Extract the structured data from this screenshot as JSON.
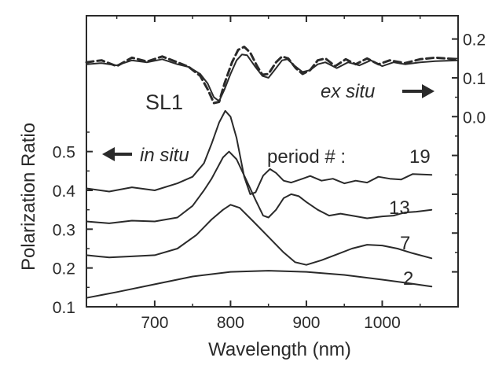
{
  "chart_data": {
    "type": "line",
    "xlabel": "Wavelength  (nm)",
    "ylabel": "Polarization Ratio",
    "xlim": [
      610,
      1100
    ],
    "x_ticks": [
      "700",
      "800",
      "900",
      "1000"
    ],
    "x_tick_values": [
      700,
      800,
      900,
      1000
    ],
    "ylim_left": [
      0.1,
      0.85
    ],
    "y_left_ticks": [
      "0.1",
      "0.2",
      "0.3",
      "0.4",
      "0.5"
    ],
    "y_left_tick_values": [
      0.1,
      0.2,
      0.3,
      0.4,
      0.5
    ],
    "y_right_ticks": [
      "0.0",
      "0.1",
      "0.2"
    ],
    "y_right_tick_values": [
      0.0,
      0.1,
      0.2
    ],
    "y_right_offset": 0.59,
    "grid": false,
    "color": "#2a2a2a",
    "annotations": {
      "sample": "SL1",
      "in_situ": "in situ",
      "ex_situ": "ex situ",
      "period_prefix": "period # :"
    },
    "series": [
      {
        "name": "19",
        "axis": "left",
        "style": "solid",
        "points": [
          [
            610,
            0.405
          ],
          [
            640,
            0.397
          ],
          [
            670,
            0.408
          ],
          [
            700,
            0.4
          ],
          [
            730,
            0.418
          ],
          [
            750,
            0.435
          ],
          [
            765,
            0.47
          ],
          [
            775,
            0.52
          ],
          [
            785,
            0.575
          ],
          [
            793,
            0.605
          ],
          [
            800,
            0.59
          ],
          [
            808,
            0.535
          ],
          [
            818,
            0.435
          ],
          [
            826,
            0.39
          ],
          [
            833,
            0.395
          ],
          [
            843,
            0.438
          ],
          [
            852,
            0.455
          ],
          [
            860,
            0.445
          ],
          [
            870,
            0.425
          ],
          [
            880,
            0.42
          ],
          [
            895,
            0.43
          ],
          [
            905,
            0.437
          ],
          [
            920,
            0.425
          ],
          [
            935,
            0.43
          ],
          [
            950,
            0.418
          ],
          [
            965,
            0.425
          ],
          [
            980,
            0.42
          ],
          [
            995,
            0.435
          ],
          [
            1010,
            0.43
          ],
          [
            1025,
            0.428
          ],
          [
            1040,
            0.442
          ],
          [
            1065,
            0.44
          ]
        ]
      },
      {
        "name": "13",
        "axis": "left",
        "style": "solid",
        "points": [
          [
            610,
            0.32
          ],
          [
            640,
            0.315
          ],
          [
            670,
            0.322
          ],
          [
            700,
            0.32
          ],
          [
            730,
            0.33
          ],
          [
            750,
            0.36
          ],
          [
            765,
            0.4
          ],
          [
            775,
            0.43
          ],
          [
            790,
            0.485
          ],
          [
            798,
            0.5
          ],
          [
            808,
            0.48
          ],
          [
            820,
            0.43
          ],
          [
            833,
            0.375
          ],
          [
            843,
            0.335
          ],
          [
            850,
            0.33
          ],
          [
            860,
            0.35
          ],
          [
            870,
            0.38
          ],
          [
            880,
            0.39
          ],
          [
            890,
            0.385
          ],
          [
            900,
            0.37
          ],
          [
            915,
            0.35
          ],
          [
            930,
            0.335
          ],
          [
            945,
            0.34
          ],
          [
            960,
            0.335
          ],
          [
            980,
            0.328
          ],
          [
            1000,
            0.333
          ],
          [
            1015,
            0.335
          ],
          [
            1030,
            0.343
          ],
          [
            1045,
            0.345
          ],
          [
            1065,
            0.35
          ]
        ]
      },
      {
        "name": "7",
        "axis": "left",
        "style": "solid",
        "points": [
          [
            610,
            0.233
          ],
          [
            640,
            0.227
          ],
          [
            670,
            0.23
          ],
          [
            700,
            0.233
          ],
          [
            730,
            0.25
          ],
          [
            755,
            0.285
          ],
          [
            775,
            0.325
          ],
          [
            790,
            0.35
          ],
          [
            800,
            0.363
          ],
          [
            812,
            0.355
          ],
          [
            830,
            0.32
          ],
          [
            850,
            0.28
          ],
          [
            870,
            0.24
          ],
          [
            885,
            0.215
          ],
          [
            900,
            0.208
          ],
          [
            920,
            0.22
          ],
          [
            940,
            0.235
          ],
          [
            960,
            0.25
          ],
          [
            980,
            0.26
          ],
          [
            1000,
            0.258
          ],
          [
            1020,
            0.25
          ],
          [
            1040,
            0.238
          ],
          [
            1065,
            0.225
          ]
        ]
      },
      {
        "name": "2",
        "axis": "left",
        "style": "solid",
        "points": [
          [
            610,
            0.123
          ],
          [
            650,
            0.138
          ],
          [
            700,
            0.158
          ],
          [
            750,
            0.178
          ],
          [
            800,
            0.19
          ],
          [
            850,
            0.193
          ],
          [
            900,
            0.19
          ],
          [
            950,
            0.182
          ],
          [
            1000,
            0.17
          ],
          [
            1030,
            0.162
          ],
          [
            1065,
            0.152
          ]
        ]
      },
      {
        "name": "ex situ (solid)",
        "axis": "right",
        "style": "solid",
        "points": [
          [
            610,
            0.135
          ],
          [
            630,
            0.138
          ],
          [
            650,
            0.132
          ],
          [
            670,
            0.145
          ],
          [
            690,
            0.14
          ],
          [
            710,
            0.148
          ],
          [
            730,
            0.135
          ],
          [
            745,
            0.128
          ],
          [
            760,
            0.11
          ],
          [
            770,
            0.085
          ],
          [
            778,
            0.05
          ],
          [
            785,
            0.04
          ],
          [
            792,
            0.07
          ],
          [
            800,
            0.11
          ],
          [
            808,
            0.145
          ],
          [
            815,
            0.16
          ],
          [
            822,
            0.158
          ],
          [
            832,
            0.13
          ],
          [
            842,
            0.105
          ],
          [
            850,
            0.1
          ],
          [
            858,
            0.12
          ],
          [
            868,
            0.145
          ],
          [
            875,
            0.148
          ],
          [
            885,
            0.13
          ],
          [
            895,
            0.115
          ],
          [
            905,
            0.12
          ],
          [
            915,
            0.135
          ],
          [
            925,
            0.14
          ],
          [
            940,
            0.125
          ],
          [
            955,
            0.14
          ],
          [
            970,
            0.132
          ],
          [
            985,
            0.145
          ],
          [
            1000,
            0.13
          ],
          [
            1015,
            0.14
          ],
          [
            1030,
            0.135
          ],
          [
            1050,
            0.14
          ],
          [
            1070,
            0.143
          ],
          [
            1100,
            0.145
          ]
        ]
      },
      {
        "name": "ex situ (dashed)",
        "axis": "right",
        "style": "dashed",
        "points": [
          [
            610,
            0.14
          ],
          [
            630,
            0.145
          ],
          [
            650,
            0.13
          ],
          [
            670,
            0.152
          ],
          [
            690,
            0.142
          ],
          [
            710,
            0.155
          ],
          [
            730,
            0.14
          ],
          [
            745,
            0.128
          ],
          [
            760,
            0.105
          ],
          [
            770,
            0.07
          ],
          [
            778,
            0.035
          ],
          [
            785,
            0.038
          ],
          [
            792,
            0.085
          ],
          [
            802,
            0.14
          ],
          [
            810,
            0.172
          ],
          [
            818,
            0.18
          ],
          [
            826,
            0.165
          ],
          [
            835,
            0.13
          ],
          [
            842,
            0.108
          ],
          [
            850,
            0.11
          ],
          [
            860,
            0.14
          ],
          [
            868,
            0.155
          ],
          [
            876,
            0.15
          ],
          [
            886,
            0.125
          ],
          [
            895,
            0.11
          ],
          [
            905,
            0.12
          ],
          [
            915,
            0.145
          ],
          [
            925,
            0.15
          ],
          [
            938,
            0.13
          ],
          [
            952,
            0.148
          ],
          [
            965,
            0.135
          ],
          [
            980,
            0.15
          ],
          [
            995,
            0.135
          ],
          [
            1010,
            0.145
          ],
          [
            1030,
            0.138
          ],
          [
            1050,
            0.148
          ],
          [
            1070,
            0.152
          ],
          [
            1100,
            0.148
          ]
        ]
      }
    ]
  }
}
